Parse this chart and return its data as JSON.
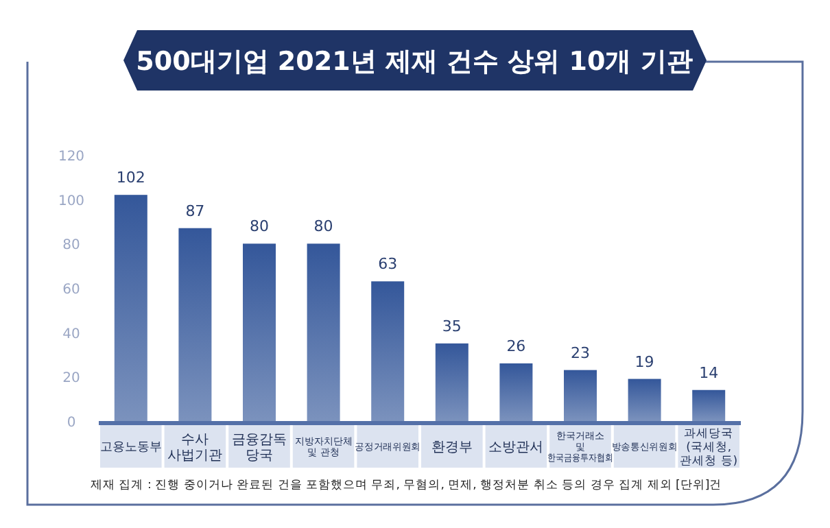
{
  "chart_data": {
    "type": "bar",
    "title": "500대기업 2021년 제재 건수 상위 10개 기관",
    "categories": [
      "고용노동부",
      "수사 사법기관",
      "금융감독 당국",
      "지방자치단체 및 관청",
      "공정거래위원회",
      "환경부",
      "소방관서",
      "한국거래소 및 한국금융투자협회",
      "방송통신위원회",
      "과세당국 (국세청, 관세청 등)"
    ],
    "values": [
      102,
      87,
      80,
      80,
      63,
      35,
      26,
      23,
      19,
      14
    ],
    "color": "#34579a",
    "ylim": [
      0,
      120
    ],
    "yticks": [
      0,
      20,
      40,
      60,
      80,
      100,
      120
    ],
    "data_labels": true,
    "grid": false,
    "annotations": [
      "제재 집계 : 진행 중이거나 완료된 건을 포함했으며 무죄, 무혐의, 면제, 행정처분 취소 등의 경우 집계 제외  [단위]건"
    ]
  }
}
